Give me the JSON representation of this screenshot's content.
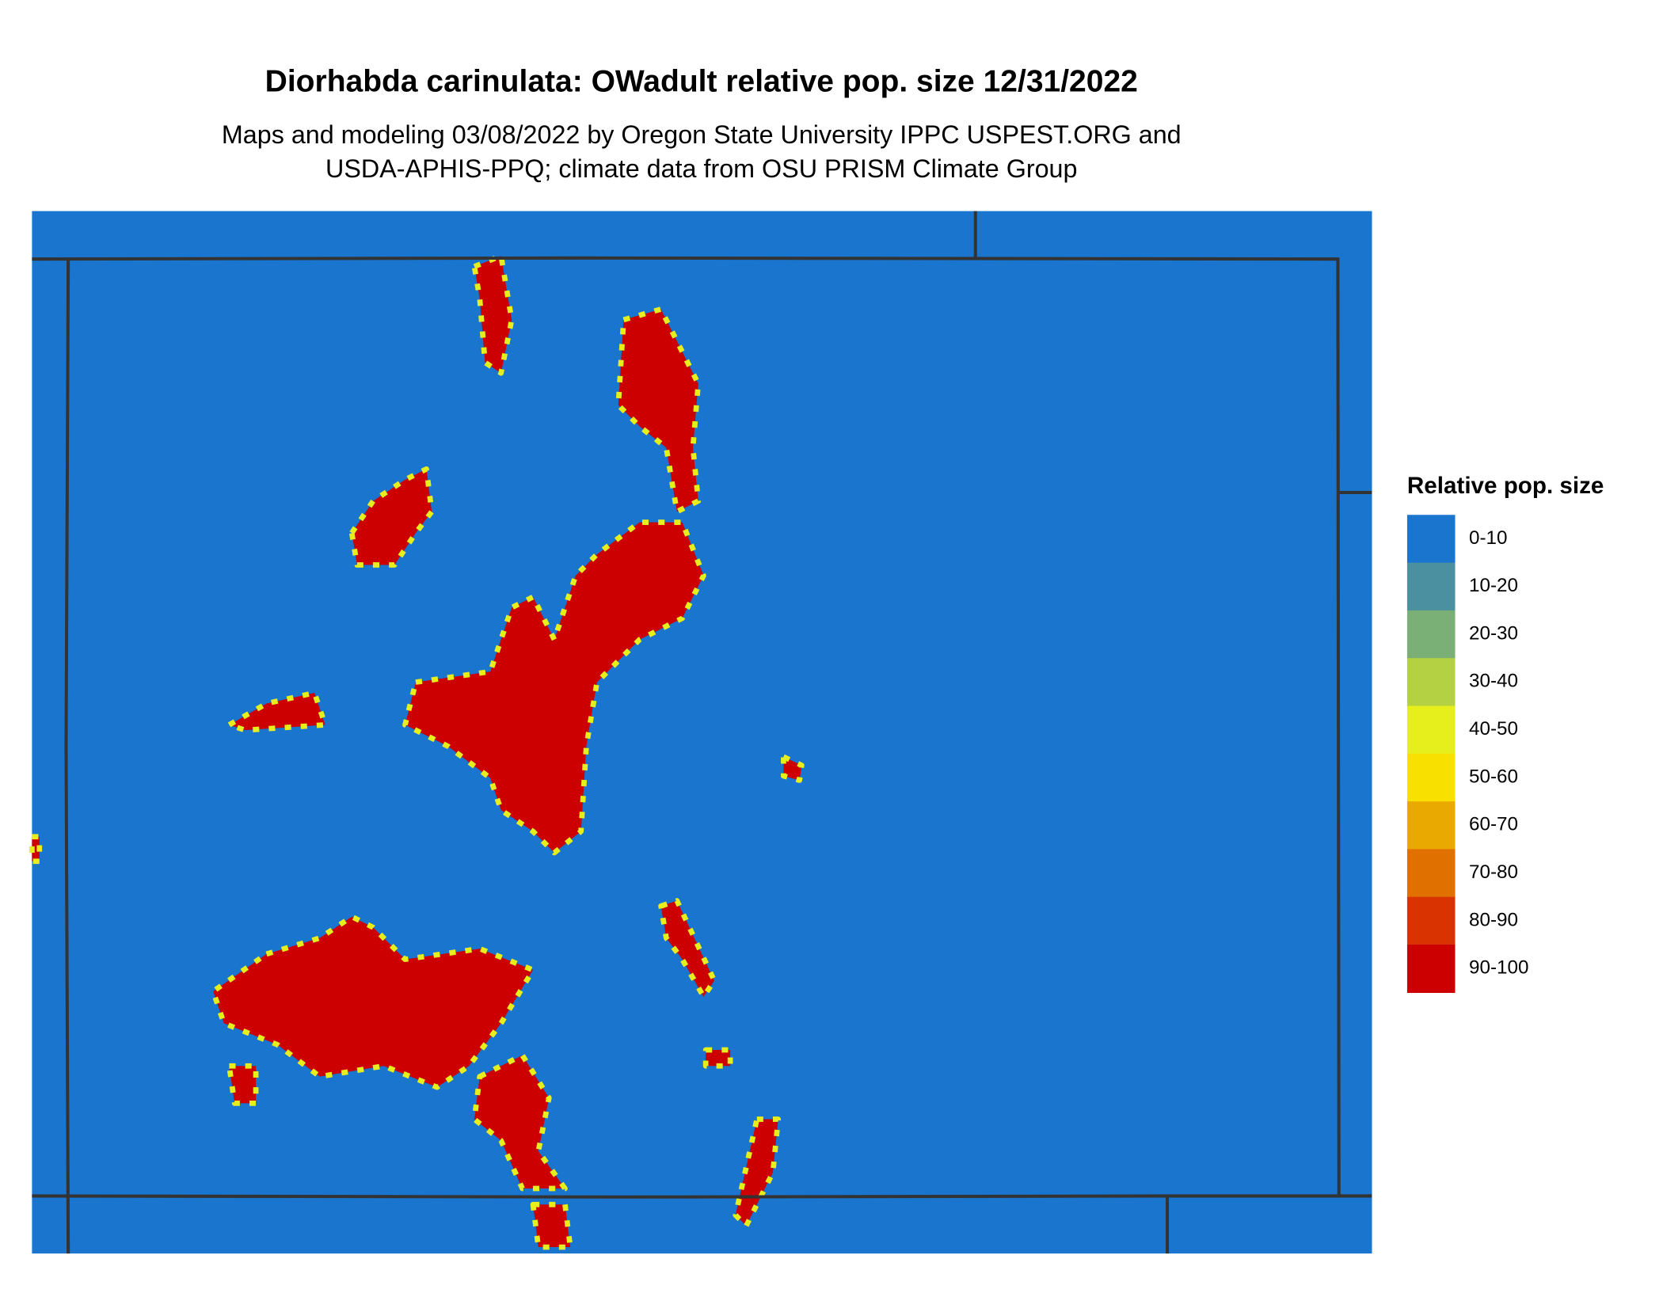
{
  "title": "Diorhabda carinulata: OWadult relative pop. size 12/31/2022",
  "subtitle": [
    "Maps and modeling 03/08/2022 by Oregon State University IPPC USPEST.ORG and",
    "USDA-APHIS-PPQ; climate data from OSU PRISM Climate Group"
  ],
  "legend": {
    "title": "Relative pop. size",
    "entries": [
      {
        "label": "0-10",
        "color": "#1a75cf"
      },
      {
        "label": "10-20",
        "color": "#4a90a0"
      },
      {
        "label": "20-30",
        "color": "#7aaf76"
      },
      {
        "label": "30-40",
        "color": "#b4d043"
      },
      {
        "label": "40-50",
        "color": "#e6ef1c"
      },
      {
        "label": "50-60",
        "color": "#f8e000"
      },
      {
        "label": "60-70",
        "color": "#eaa900"
      },
      {
        "label": "70-80",
        "color": "#e07000"
      },
      {
        "label": "80-90",
        "color": "#d83300"
      },
      {
        "label": "90-100",
        "color": "#cc0000"
      }
    ]
  }
}
